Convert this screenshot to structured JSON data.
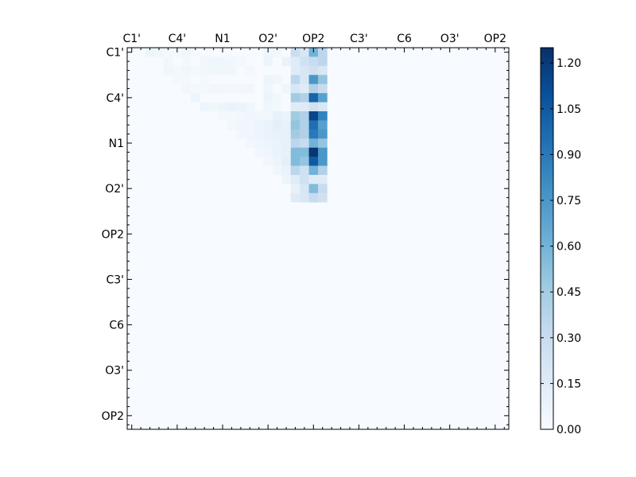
{
  "chart_data": {
    "type": "heatmap",
    "title": "",
    "xlabel": "",
    "ylabel": "",
    "n": 42,
    "x_tick_labels": [
      "C1'",
      "C4'",
      "N1",
      "O2'",
      "OP2",
      "C3'",
      "C6",
      "O3'",
      "OP2"
    ],
    "x_tick_indices": [
      0,
      5,
      10,
      15,
      20,
      25,
      30,
      35,
      40
    ],
    "y_tick_labels": [
      "C1'",
      "C4'",
      "N1",
      "O2'",
      "OP2",
      "C3'",
      "C6",
      "O3'",
      "OP2"
    ],
    "y_tick_indices": [
      0,
      5,
      10,
      15,
      20,
      25,
      30,
      35,
      40
    ],
    "colormap": "Blues",
    "colormap_stops": [
      "#f7fbff",
      "#deebf7",
      "#c6dbef",
      "#9ecae1",
      "#6baed6",
      "#4292c6",
      "#2171b5",
      "#08519c",
      "#08306b"
    ],
    "vmin": 0.0,
    "vmax": 1.25,
    "colorbar_ticks": [
      "0.00",
      "0.15",
      "0.30",
      "0.45",
      "0.60",
      "0.75",
      "0.90",
      "1.05",
      "1.20"
    ],
    "colorbar_tick_values": [
      0.0,
      0.15,
      0.3,
      0.45,
      0.6,
      0.75,
      0.9,
      1.05,
      1.2
    ],
    "cells": [
      [
        0,
        2,
        0.06
      ],
      [
        0,
        3,
        0.05
      ],
      [
        0,
        4,
        0.03
      ],
      [
        0,
        5,
        0.03
      ],
      [
        0,
        6,
        0.05
      ],
      [
        0,
        7,
        0.02
      ],
      [
        0,
        15,
        0.05
      ],
      [
        0,
        16,
        0.04
      ],
      [
        0,
        18,
        0.28
      ],
      [
        0,
        19,
        0.2
      ],
      [
        0,
        20,
        0.6
      ],
      [
        0,
        21,
        0.35
      ],
      [
        1,
        4,
        0.04
      ],
      [
        1,
        6,
        0.03
      ],
      [
        1,
        8,
        0.04
      ],
      [
        1,
        9,
        0.05
      ],
      [
        1,
        10,
        0.05
      ],
      [
        1,
        11,
        0.04
      ],
      [
        1,
        12,
        0.03
      ],
      [
        1,
        15,
        0.06
      ],
      [
        1,
        17,
        0.08
      ],
      [
        1,
        18,
        0.15
      ],
      [
        1,
        19,
        0.25
      ],
      [
        1,
        20,
        0.3
      ],
      [
        1,
        21,
        0.35
      ],
      [
        2,
        4,
        0.05
      ],
      [
        2,
        5,
        0.03
      ],
      [
        2,
        6,
        0.05
      ],
      [
        2,
        7,
        0.03
      ],
      [
        2,
        8,
        0.04
      ],
      [
        2,
        9,
        0.05
      ],
      [
        2,
        10,
        0.05
      ],
      [
        2,
        11,
        0.05
      ],
      [
        2,
        13,
        0.03
      ],
      [
        2,
        18,
        0.15
      ],
      [
        2,
        19,
        0.2
      ],
      [
        2,
        20,
        0.25
      ],
      [
        2,
        21,
        0.2
      ],
      [
        3,
        5,
        0.03
      ],
      [
        3,
        6,
        0.03
      ],
      [
        3,
        8,
        0.03
      ],
      [
        3,
        15,
        0.06
      ],
      [
        3,
        16,
        0.05
      ],
      [
        3,
        18,
        0.35
      ],
      [
        3,
        19,
        0.2
      ],
      [
        3,
        20,
        0.75
      ],
      [
        3,
        21,
        0.5
      ],
      [
        4,
        6,
        0.04
      ],
      [
        4,
        7,
        0.03
      ],
      [
        4,
        8,
        0.03
      ],
      [
        4,
        9,
        0.04
      ],
      [
        4,
        10,
        0.04
      ],
      [
        4,
        11,
        0.03
      ],
      [
        4,
        12,
        0.04
      ],
      [
        4,
        13,
        0.04
      ],
      [
        4,
        15,
        0.05
      ],
      [
        4,
        17,
        0.05
      ],
      [
        4,
        18,
        0.2
      ],
      [
        4,
        19,
        0.15
      ],
      [
        4,
        20,
        0.4
      ],
      [
        4,
        21,
        0.3
      ],
      [
        5,
        7,
        0.06
      ],
      [
        5,
        15,
        0.06
      ],
      [
        5,
        16,
        0.04
      ],
      [
        5,
        18,
        0.45
      ],
      [
        5,
        19,
        0.4
      ],
      [
        5,
        20,
        1.0
      ],
      [
        5,
        21,
        0.7
      ],
      [
        6,
        8,
        0.06
      ],
      [
        6,
        9,
        0.05
      ],
      [
        6,
        10,
        0.06
      ],
      [
        6,
        11,
        0.08
      ],
      [
        6,
        12,
        0.07
      ],
      [
        6,
        13,
        0.05
      ],
      [
        6,
        15,
        0.05
      ],
      [
        6,
        16,
        0.03
      ],
      [
        6,
        18,
        0.15
      ],
      [
        6,
        19,
        0.15
      ],
      [
        6,
        20,
        0.25
      ],
      [
        6,
        21,
        0.2
      ],
      [
        7,
        10,
        0.03
      ],
      [
        7,
        11,
        0.03
      ],
      [
        7,
        12,
        0.04
      ],
      [
        7,
        13,
        0.05
      ],
      [
        7,
        14,
        0.04
      ],
      [
        7,
        15,
        0.04
      ],
      [
        7,
        16,
        0.1
      ],
      [
        7,
        17,
        0.08
      ],
      [
        7,
        18,
        0.45
      ],
      [
        7,
        19,
        0.4
      ],
      [
        7,
        20,
        1.15
      ],
      [
        7,
        21,
        0.85
      ],
      [
        8,
        11,
        0.04
      ],
      [
        8,
        12,
        0.05
      ],
      [
        8,
        13,
        0.05
      ],
      [
        8,
        14,
        0.06
      ],
      [
        8,
        15,
        0.08
      ],
      [
        8,
        16,
        0.12
      ],
      [
        8,
        17,
        0.1
      ],
      [
        8,
        18,
        0.5
      ],
      [
        8,
        19,
        0.4
      ],
      [
        8,
        20,
        0.95
      ],
      [
        8,
        21,
        0.7
      ],
      [
        9,
        12,
        0.04
      ],
      [
        9,
        13,
        0.05
      ],
      [
        9,
        14,
        0.06
      ],
      [
        9,
        15,
        0.08
      ],
      [
        9,
        16,
        0.1
      ],
      [
        9,
        17,
        0.1
      ],
      [
        9,
        18,
        0.45
      ],
      [
        9,
        19,
        0.4
      ],
      [
        9,
        20,
        0.9
      ],
      [
        9,
        21,
        0.75
      ],
      [
        10,
        13,
        0.04
      ],
      [
        10,
        14,
        0.05
      ],
      [
        10,
        15,
        0.06
      ],
      [
        10,
        16,
        0.08
      ],
      [
        10,
        17,
        0.1
      ],
      [
        10,
        18,
        0.35
      ],
      [
        10,
        19,
        0.3
      ],
      [
        10,
        20,
        0.6
      ],
      [
        10,
        21,
        0.5
      ],
      [
        11,
        14,
        0.04
      ],
      [
        11,
        15,
        0.05
      ],
      [
        11,
        16,
        0.08
      ],
      [
        11,
        17,
        0.1
      ],
      [
        11,
        18,
        0.55
      ],
      [
        11,
        19,
        0.55
      ],
      [
        11,
        20,
        1.22
      ],
      [
        11,
        21,
        0.75
      ],
      [
        12,
        15,
        0.04
      ],
      [
        12,
        16,
        0.06
      ],
      [
        12,
        17,
        0.12
      ],
      [
        12,
        18,
        0.55
      ],
      [
        12,
        19,
        0.5
      ],
      [
        12,
        20,
        1.05
      ],
      [
        12,
        21,
        0.75
      ],
      [
        13,
        16,
        0.05
      ],
      [
        13,
        17,
        0.08
      ],
      [
        13,
        18,
        0.35
      ],
      [
        13,
        19,
        0.25
      ],
      [
        13,
        20,
        0.6
      ],
      [
        13,
        21,
        0.4
      ],
      [
        14,
        17,
        0.06
      ],
      [
        14,
        18,
        0.15
      ],
      [
        14,
        19,
        0.25
      ],
      [
        14,
        20,
        0.15
      ],
      [
        14,
        21,
        0.15
      ],
      [
        15,
        18,
        0.1
      ],
      [
        15,
        19,
        0.2
      ],
      [
        15,
        20,
        0.55
      ],
      [
        15,
        21,
        0.3
      ],
      [
        16,
        18,
        0.15
      ],
      [
        16,
        19,
        0.2
      ],
      [
        16,
        20,
        0.3
      ],
      [
        16,
        21,
        0.25
      ]
    ]
  }
}
